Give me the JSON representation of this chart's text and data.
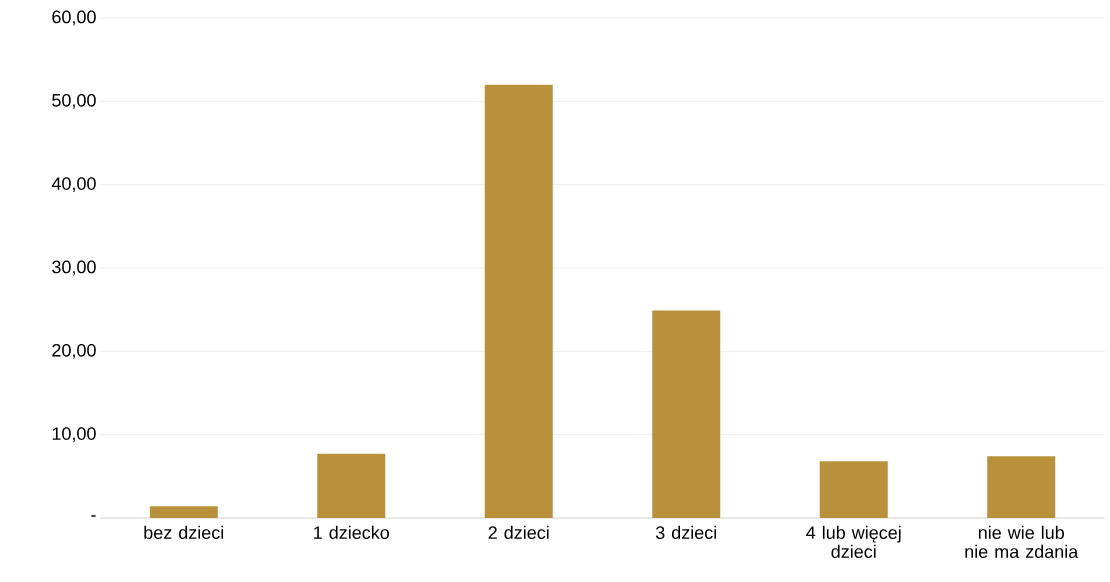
{
  "chart_data": {
    "type": "bar",
    "categories": [
      "bez dzieci",
      "1 dziecko",
      "2 dzieci",
      "3 dzieci",
      "4 lub więcej dzieci",
      "nie wie lub nie ma zdania"
    ],
    "values": [
      1.4,
      7.7,
      52.0,
      24.9,
      6.8,
      7.4
    ],
    "color": "#b8913a",
    "ylim": [
      0,
      60
    ],
    "yticks": [
      {
        "value": 0,
        "label": "-"
      },
      {
        "value": 10,
        "label": "10,00"
      },
      {
        "value": 20,
        "label": "20,00"
      },
      {
        "value": 30,
        "label": "30,00"
      },
      {
        "value": 40,
        "label": "40,00"
      },
      {
        "value": 50,
        "label": "50,00"
      },
      {
        "value": 60,
        "label": "60,00"
      }
    ],
    "grid": "y"
  }
}
